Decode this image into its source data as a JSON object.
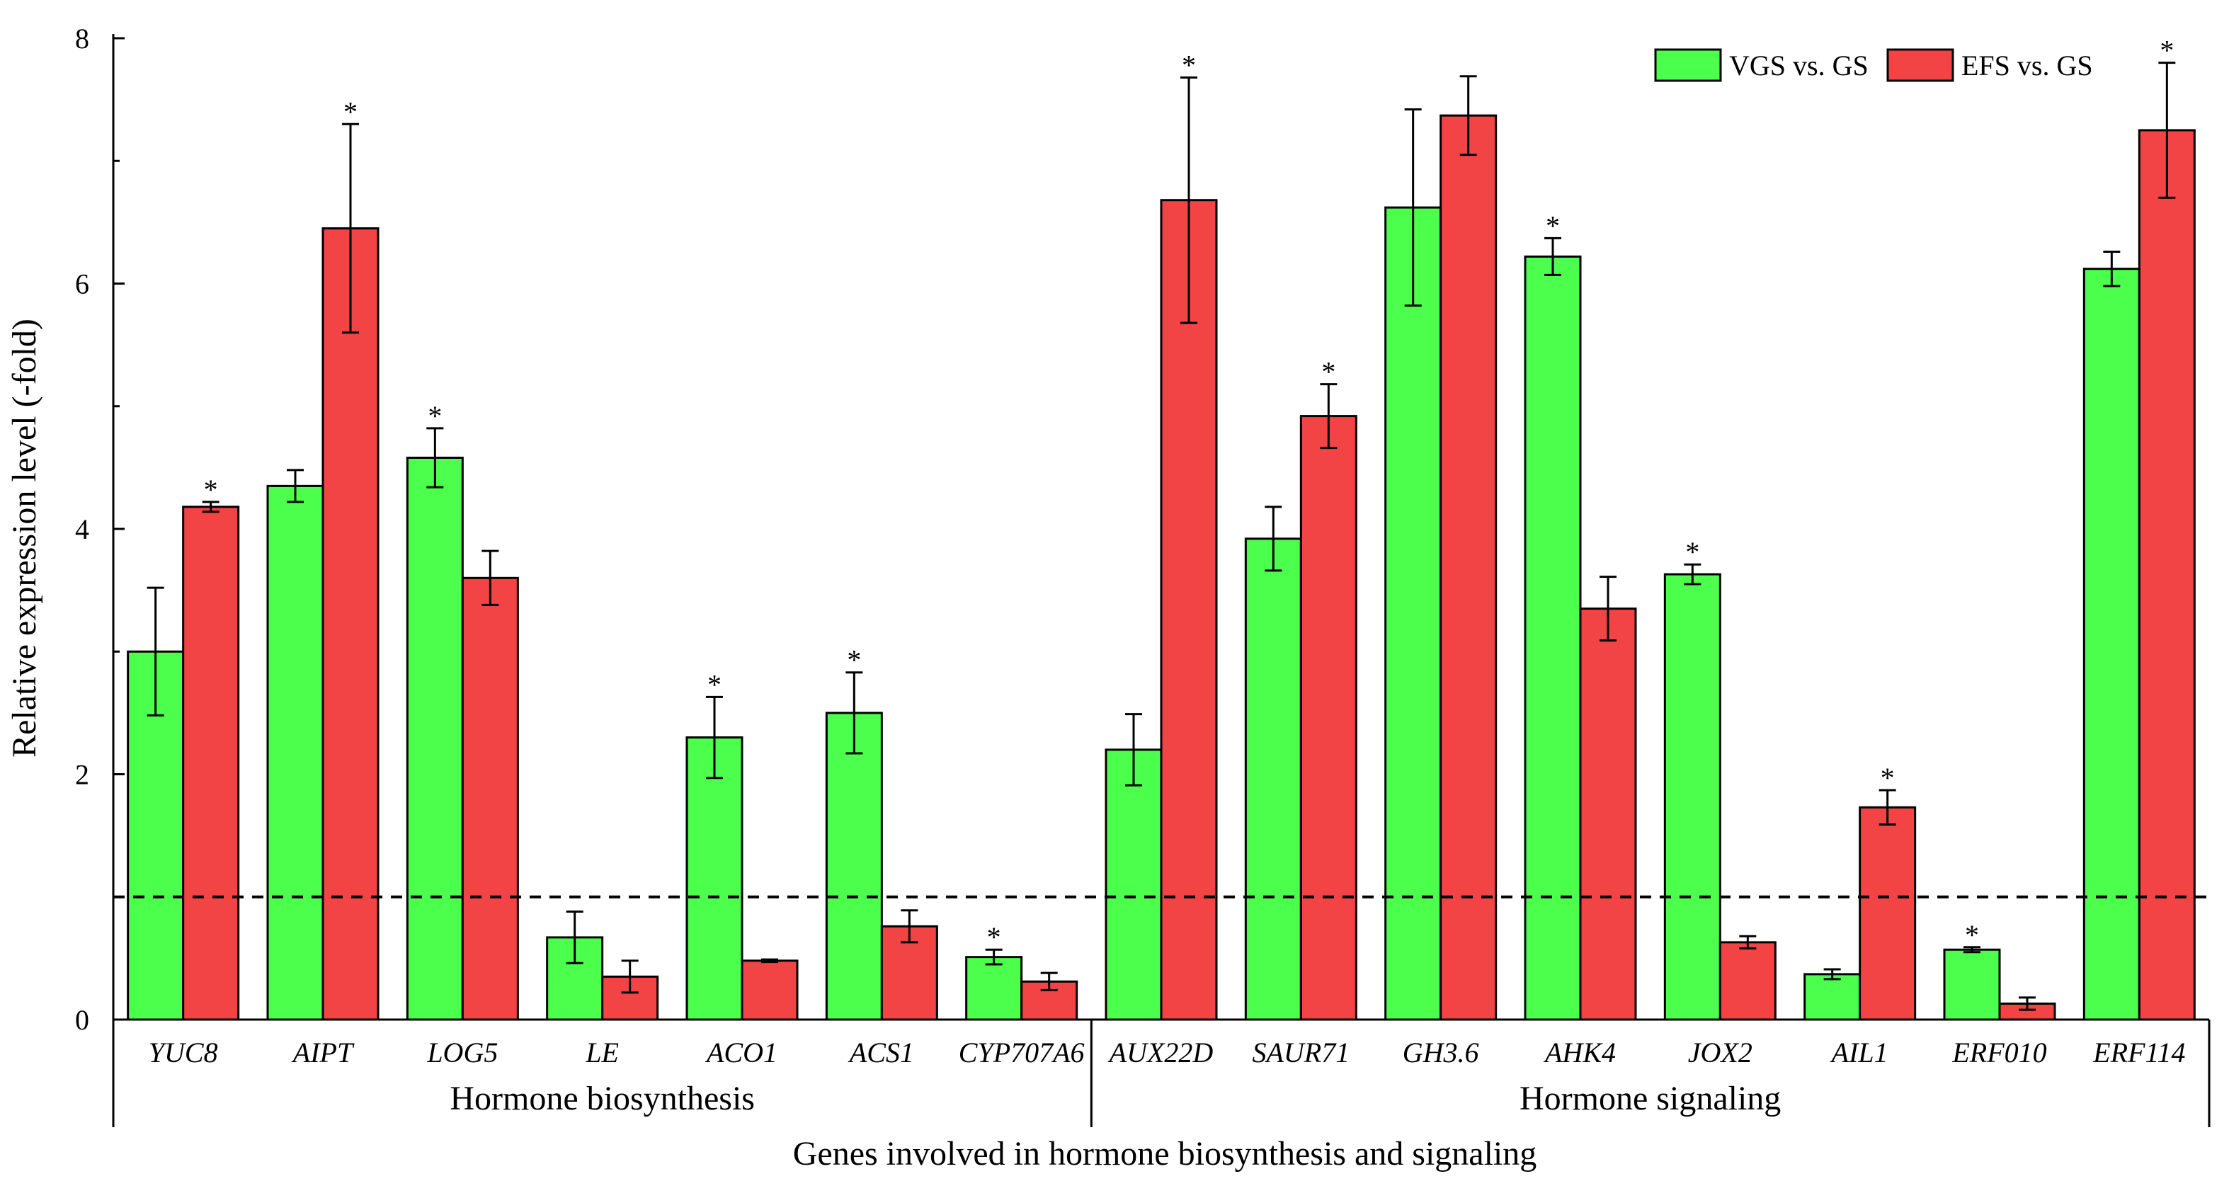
{
  "chart_data": {
    "type": "bar",
    "ylabel": "Relative expression level (-fold)",
    "xlabel": "Genes involved in hormone biosynthesis and signaling",
    "ylim": [
      0,
      8
    ],
    "yticks": [
      0,
      2,
      4,
      6,
      8
    ],
    "reference_line": 1,
    "legend_position": "top-right",
    "categories": [
      "YUC8",
      "AIPT",
      "LOG5",
      "LE",
      "ACO1",
      "ACS1",
      "CYP707A6",
      "AUX22D",
      "SAUR71",
      "GH3.6",
      "AHK4",
      "JOX2",
      "AIL1",
      "ERF010",
      "ERF114"
    ],
    "groups": [
      {
        "label": "Hormone biosynthesis",
        "start": 0,
        "end": 6
      },
      {
        "label": "Hormone signaling",
        "start": 7,
        "end": 14
      }
    ],
    "series": [
      {
        "name": "VGS vs. GS",
        "color": "#4dff4d",
        "values": [
          3.0,
          4.35,
          4.58,
          0.67,
          2.3,
          2.5,
          0.51,
          2.2,
          3.92,
          6.62,
          6.22,
          3.63,
          0.37,
          0.57,
          6.12
        ],
        "errors": [
          0.52,
          0.13,
          0.24,
          0.21,
          0.33,
          0.33,
          0.06,
          0.29,
          0.26,
          0.8,
          0.15,
          0.08,
          0.04,
          0.02,
          0.14
        ],
        "significant": [
          false,
          false,
          true,
          false,
          true,
          true,
          true,
          false,
          false,
          false,
          true,
          true,
          false,
          true,
          false
        ]
      },
      {
        "name": "EFS vs. GS",
        "color": "#f24444",
        "values": [
          4.18,
          6.45,
          3.6,
          0.35,
          0.48,
          0.76,
          0.31,
          6.68,
          4.92,
          7.37,
          3.35,
          0.63,
          1.73,
          0.13,
          7.25
        ],
        "errors": [
          0.04,
          0.85,
          0.22,
          0.13,
          0.01,
          0.13,
          0.07,
          1.0,
          0.26,
          0.32,
          0.26,
          0.05,
          0.14,
          0.05,
          0.55
        ],
        "significant": [
          true,
          true,
          false,
          false,
          false,
          false,
          false,
          true,
          true,
          false,
          false,
          false,
          true,
          false,
          true
        ]
      }
    ],
    "significance_marker": "*"
  }
}
